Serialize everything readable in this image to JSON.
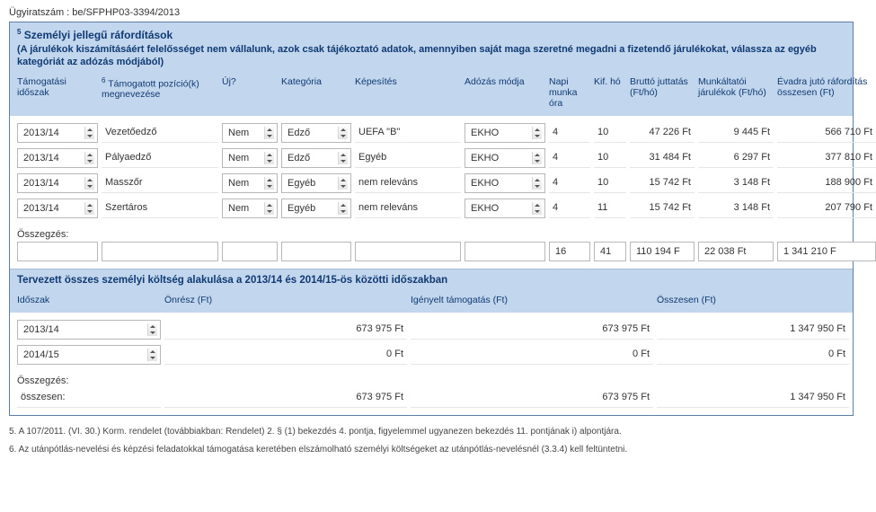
{
  "case_no": "Ügyiratszám : be/SFPHP03-3394/2013",
  "section1": {
    "title_sup": "5",
    "title": "Személyi jellegű ráfordítások",
    "subtitle": "(A járulékok kiszámításáért felelősséget nem vállalunk, azok csak tájékoztató adatok, amennyiben saját maga szeretné megadni a fizetendő járulékokat, válassza az egyéb kategóriát az adózás módjából)",
    "headers": {
      "c1": "Támogatási időszak",
      "c2_sup": "6",
      "c2": "Támogatott pozíció(k) megnevezése",
      "c3": "Új?",
      "c4": "Kategória",
      "c5": "Képesítés",
      "c6": "Adózás módja",
      "c7": "Napi munka óra",
      "c8": "Kif. hó",
      "c9": "Bruttó juttatás (Ft/hó)",
      "c10": "Munkáltatói járulékok (Ft/hó)",
      "c11": "Évadra jutó ráfordítás összesen (Ft)"
    },
    "rows": [
      {
        "period": "2013/14",
        "pos": "Vezetőedző",
        "uj": "Nem",
        "kat": "Edző",
        "kep": "UEFA \"B\"",
        "ado": "EKHO",
        "ora": "4",
        "ho": "10",
        "brutto": "47 226 Ft",
        "jar": "9 445 Ft",
        "ev": "566 710 Ft"
      },
      {
        "period": "2013/14",
        "pos": "Pályaedző",
        "uj": "Nem",
        "kat": "Edző",
        "kep": "Egyéb",
        "ado": "EKHO",
        "ora": "4",
        "ho": "10",
        "brutto": "31 484 Ft",
        "jar": "6 297 Ft",
        "ev": "377 810 Ft"
      },
      {
        "period": "2013/14",
        "pos": "Masszőr",
        "uj": "Nem",
        "kat": "Egyéb",
        "kep": "nem releváns",
        "ado": "EKHO",
        "ora": "4",
        "ho": "10",
        "brutto": "15 742 Ft",
        "jar": "3 148 Ft",
        "ev": "188 900 Ft"
      },
      {
        "period": "2013/14",
        "pos": "Szertáros",
        "uj": "Nem",
        "kat": "Egyéb",
        "kep": "nem releváns",
        "ado": "EKHO",
        "ora": "4",
        "ho": "11",
        "brutto": "15 742 Ft",
        "jar": "3 148 Ft",
        "ev": "207 790 Ft"
      }
    ],
    "summary_label": "Összegzés:",
    "summary": {
      "ora": "16",
      "ho": "41",
      "brutto": "110 194 F",
      "jar": "22 038 Ft",
      "ev": "1 341 210 F"
    }
  },
  "section2": {
    "title": "Tervezett összes személyi költség alakulása a 2013/14 és 2014/15-ös közötti időszakban",
    "headers": {
      "c1": "Időszak",
      "c2": "Önrész (Ft)",
      "c3": "Igényelt támogatás (Ft)",
      "c4": "Összesen (Ft)"
    },
    "rows": [
      {
        "period": "2013/14",
        "onresz": "673 975 Ft",
        "tamogatas": "673 975 Ft",
        "ossz": "1 347 950 Ft"
      },
      {
        "period": "2014/15",
        "onresz": "0 Ft",
        "tamogatas": "0 Ft",
        "ossz": "0 Ft"
      }
    ],
    "summary_label": "Összegzés:",
    "summary_word": "összesen:",
    "summary": {
      "onresz": "673 975 Ft",
      "tamogatas": "673 975 Ft",
      "ossz": "1 347 950 Ft"
    }
  },
  "footnotes": {
    "f5": "5. A 107/2011. (VI. 30.) Korm. rendelet (továbbiakban: Rendelet) 2. § (1) bekezdés 4. pontja, figyelemmel ugyanezen bekezdés 11. pontjának i) alpontjára.",
    "f6": "6. Az utánpótlás-nevelési és képzési feladatokkal támogatása keretében elszámolható személyi költségeket az utánpótlás-nevelésnél (3.3.4) kell feltüntetni."
  }
}
